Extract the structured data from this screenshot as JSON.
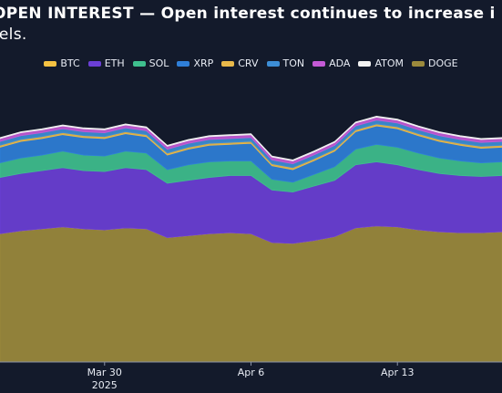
{
  "title": {
    "line1": "OPEN INTEREST — Open interest continues to increase i",
    "line2": "rels."
  },
  "chart_data": {
    "type": "area",
    "stacked": true,
    "legend_position": "top",
    "grid": false,
    "x": [
      "Mar 25",
      "Mar 26",
      "Mar 27",
      "Mar 28",
      "Mar 29",
      "Mar 30",
      "Mar 31",
      "Apr 1",
      "Apr 2",
      "Apr 3",
      "Apr 4",
      "Apr 5",
      "Apr 6",
      "Apr 7",
      "Apr 8",
      "Apr 9",
      "Apr 10",
      "Apr 11",
      "Apr 12",
      "Apr 13",
      "Apr 14",
      "Apr 15",
      "Apr 16",
      "Apr 17",
      "Apr 18"
    ],
    "xticks": [
      {
        "value": "Mar 30",
        "label": "Mar 30",
        "sublabel": "2025"
      },
      {
        "value": "Apr 6",
        "label": "Apr 6",
        "sublabel": ""
      },
      {
        "value": "Apr 13",
        "label": "Apr 13",
        "sublabel": ""
      }
    ],
    "ylim": [
      0,
      29
    ],
    "series": [
      {
        "name": "BTC",
        "color": "#f5c242",
        "values": [
          0.0,
          0.0,
          0.0,
          0.0,
          0.0,
          0.0,
          0.0,
          0.0,
          0.0,
          0.0,
          0.0,
          0.0,
          0.0,
          0.0,
          0.0,
          0.0,
          0.0,
          0.0,
          0.0,
          0.0,
          0.0,
          0.0,
          0.0,
          0.0,
          0.0
        ]
      },
      {
        "name": "ETH",
        "color": "#6b3fd6",
        "values": [
          5.8,
          5.9,
          6.0,
          6.1,
          6.0,
          6.0,
          6.2,
          6.1,
          5.6,
          5.7,
          5.8,
          5.9,
          6.0,
          5.4,
          5.3,
          5.6,
          5.8,
          6.5,
          6.6,
          6.4,
          6.2,
          6.0,
          5.9,
          5.8,
          5.8
        ]
      },
      {
        "name": "SOL",
        "color": "#3fbf8e",
        "values": [
          1.5,
          1.6,
          1.6,
          1.7,
          1.6,
          1.6,
          1.7,
          1.7,
          1.4,
          1.6,
          1.6,
          1.5,
          1.5,
          1.1,
          1.0,
          1.2,
          1.4,
          1.6,
          1.8,
          1.8,
          1.7,
          1.6,
          1.5,
          1.4,
          1.4
        ]
      },
      {
        "name": "XRP",
        "color": "#2f7fd8",
        "values": [
          1.6,
          1.7,
          1.7,
          1.7,
          1.8,
          1.8,
          1.8,
          1.7,
          1.5,
          1.6,
          1.7,
          1.7,
          1.8,
          1.4,
          1.3,
          1.4,
          1.6,
          1.8,
          1.9,
          1.9,
          1.8,
          1.7,
          1.6,
          1.5,
          1.5
        ]
      },
      {
        "name": "CRV",
        "color": "#e9b94a",
        "values": [
          0.2,
          0.2,
          0.2,
          0.2,
          0.2,
          0.2,
          0.2,
          0.2,
          0.2,
          0.2,
          0.2,
          0.2,
          0.2,
          0.2,
          0.2,
          0.2,
          0.2,
          0.2,
          0.2,
          0.2,
          0.2,
          0.2,
          0.2,
          0.2,
          0.2
        ]
      },
      {
        "name": "TON",
        "color": "#3d8ed6",
        "values": [
          0.4,
          0.4,
          0.4,
          0.4,
          0.4,
          0.4,
          0.4,
          0.4,
          0.4,
          0.4,
          0.4,
          0.4,
          0.4,
          0.4,
          0.4,
          0.4,
          0.4,
          0.4,
          0.4,
          0.4,
          0.4,
          0.4,
          0.4,
          0.4,
          0.4
        ]
      },
      {
        "name": "ADA",
        "color": "#c45ad6",
        "values": [
          0.3,
          0.3,
          0.3,
          0.3,
          0.3,
          0.3,
          0.3,
          0.3,
          0.3,
          0.3,
          0.3,
          0.3,
          0.3,
          0.3,
          0.3,
          0.3,
          0.3,
          0.3,
          0.3,
          0.3,
          0.3,
          0.3,
          0.3,
          0.3,
          0.3
        ]
      },
      {
        "name": "ATOM",
        "color": "#f2f2f2",
        "values": [
          0.1,
          0.1,
          0.1,
          0.1,
          0.1,
          0.1,
          0.1,
          0.1,
          0.1,
          0.1,
          0.1,
          0.1,
          0.1,
          0.1,
          0.1,
          0.1,
          0.1,
          0.1,
          0.1,
          0.1,
          0.1,
          0.1,
          0.1,
          0.1,
          0.1
        ]
      },
      {
        "name": "DOGE",
        "color": "#9c8a3c",
        "values": [
          13.2,
          13.5,
          13.7,
          13.9,
          13.7,
          13.6,
          13.8,
          13.7,
          12.8,
          13.0,
          13.2,
          13.3,
          13.2,
          12.3,
          12.2,
          12.5,
          12.9,
          13.8,
          14.0,
          13.9,
          13.6,
          13.4,
          13.3,
          13.3,
          13.4
        ]
      }
    ]
  }
}
